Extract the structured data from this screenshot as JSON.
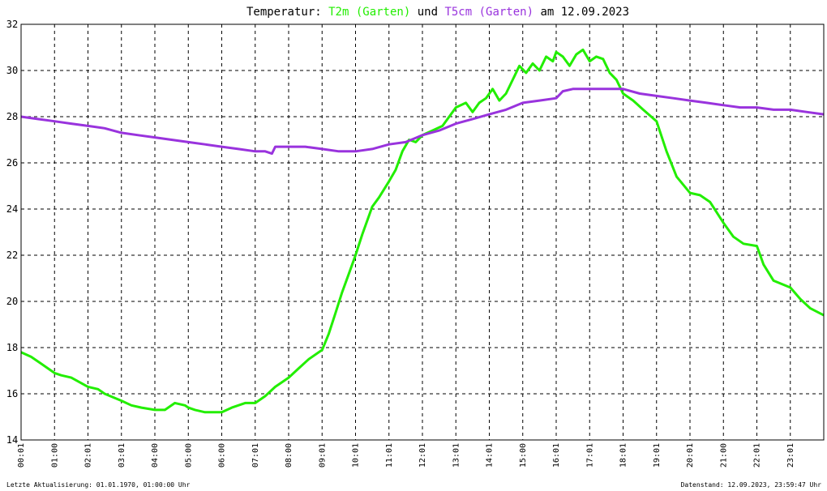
{
  "chart_data": {
    "type": "line",
    "title_parts": [
      {
        "text": "Temperatur: ",
        "role": "plain"
      },
      {
        "text": "T2m (Garten)",
        "role": "series-0"
      },
      {
        "text": " und ",
        "role": "plain"
      },
      {
        "text": "T5cm (Garten)",
        "role": "series-1"
      },
      {
        "text": " am 12.09.2023",
        "role": "plain"
      }
    ],
    "xlabel": "",
    "ylabel": "",
    "xlim": [
      0,
      24
    ],
    "ylim": [
      14,
      32
    ],
    "grid": true,
    "y_ticks": [
      14,
      16,
      18,
      20,
      22,
      24,
      26,
      28,
      30,
      32
    ],
    "x_ticks": [
      {
        "x": 0,
        "label": "00:01"
      },
      {
        "x": 1,
        "label": "01:00"
      },
      {
        "x": 2,
        "label": "02:01"
      },
      {
        "x": 3,
        "label": "03:01"
      },
      {
        "x": 4,
        "label": "04:00"
      },
      {
        "x": 5,
        "label": "05:00"
      },
      {
        "x": 6,
        "label": "06:00"
      },
      {
        "x": 7,
        "label": "07:01"
      },
      {
        "x": 8,
        "label": "08:00"
      },
      {
        "x": 9,
        "label": "09:01"
      },
      {
        "x": 10,
        "label": "10:01"
      },
      {
        "x": 11,
        "label": "11:01"
      },
      {
        "x": 12,
        "label": "12:01"
      },
      {
        "x": 13,
        "label": "13:01"
      },
      {
        "x": 14,
        "label": "14:01"
      },
      {
        "x": 15,
        "label": "15:00"
      },
      {
        "x": 16,
        "label": "16:01"
      },
      {
        "x": 17,
        "label": "17:01"
      },
      {
        "x": 18,
        "label": "18:01"
      },
      {
        "x": 19,
        "label": "19:01"
      },
      {
        "x": 20,
        "label": "20:01"
      },
      {
        "x": 21,
        "label": "21:00"
      },
      {
        "x": 22,
        "label": "22:01"
      },
      {
        "x": 23,
        "label": "23:01"
      }
    ],
    "series": [
      {
        "name": "T2m (Garten)",
        "color": "#22ee00",
        "x": [
          0,
          0.3,
          0.6,
          1.0,
          1.2,
          1.5,
          2.0,
          2.3,
          2.5,
          3.0,
          3.3,
          3.6,
          4.0,
          4.3,
          4.6,
          4.9,
          5.0,
          5.2,
          5.5,
          5.8,
          6.0,
          6.3,
          6.7,
          7.0,
          7.3,
          7.6,
          8.0,
          8.3,
          8.6,
          9.0,
          9.2,
          9.4,
          9.6,
          9.8,
          10.0,
          10.2,
          10.5,
          10.7,
          11.0,
          11.2,
          11.4,
          11.6,
          11.8,
          12.0,
          12.3,
          12.6,
          13.0,
          13.3,
          13.5,
          13.7,
          13.9,
          14.1,
          14.3,
          14.5,
          14.7,
          14.9,
          15.1,
          15.3,
          15.5,
          15.7,
          15.9,
          16.0,
          16.2,
          16.4,
          16.6,
          16.8,
          17.0,
          17.2,
          17.4,
          17.6,
          17.8,
          18.0,
          18.3,
          18.6,
          19.0,
          19.3,
          19.6,
          20.0,
          20.3,
          20.6,
          21.0,
          21.3,
          21.6,
          22.0,
          22.2,
          22.5,
          23.0,
          23.3,
          23.6,
          24.0
        ],
        "values": [
          17.8,
          17.6,
          17.3,
          16.9,
          16.8,
          16.7,
          16.3,
          16.2,
          16.0,
          15.7,
          15.5,
          15.4,
          15.3,
          15.3,
          15.6,
          15.5,
          15.4,
          15.3,
          15.2,
          15.2,
          15.2,
          15.4,
          15.6,
          15.6,
          15.9,
          16.3,
          16.7,
          17.1,
          17.5,
          17.9,
          18.6,
          19.5,
          20.4,
          21.2,
          22.0,
          22.9,
          24.1,
          24.5,
          25.2,
          25.7,
          26.5,
          27.0,
          26.9,
          27.2,
          27.4,
          27.6,
          28.4,
          28.6,
          28.2,
          28.6,
          28.8,
          29.2,
          28.7,
          29.0,
          29.6,
          30.2,
          29.9,
          30.3,
          30.0,
          30.6,
          30.4,
          30.8,
          30.6,
          30.2,
          30.7,
          30.9,
          30.4,
          30.6,
          30.5,
          29.9,
          29.6,
          29.0,
          28.7,
          28.3,
          27.8,
          26.5,
          25.4,
          24.7,
          24.6,
          24.3,
          23.4,
          22.8,
          22.5,
          22.4,
          21.6,
          20.9,
          20.6,
          20.1,
          19.7,
          19.4
        ]
      },
      {
        "name": "T5cm (Garten)",
        "color": "#9933dd",
        "x": [
          0,
          0.5,
          1.0,
          1.5,
          2.0,
          2.5,
          3.0,
          3.5,
          4.0,
          4.5,
          5.0,
          5.5,
          6.0,
          6.5,
          7.0,
          7.3,
          7.5,
          7.6,
          8.0,
          8.5,
          9.0,
          9.5,
          10.0,
          10.5,
          11.0,
          11.5,
          12.0,
          12.5,
          13.0,
          13.5,
          14.0,
          14.5,
          15.0,
          15.5,
          16.0,
          16.2,
          16.5,
          17.0,
          17.5,
          18.0,
          18.5,
          19.0,
          19.5,
          20.0,
          20.5,
          21.0,
          21.5,
          22.0,
          22.5,
          23.0,
          23.5,
          24.0
        ],
        "values": [
          28.0,
          27.9,
          27.8,
          27.7,
          27.6,
          27.5,
          27.3,
          27.2,
          27.1,
          27.0,
          26.9,
          26.8,
          26.7,
          26.6,
          26.5,
          26.5,
          26.4,
          26.7,
          26.7,
          26.7,
          26.6,
          26.5,
          26.5,
          26.6,
          26.8,
          26.9,
          27.2,
          27.4,
          27.7,
          27.9,
          28.1,
          28.3,
          28.6,
          28.7,
          28.8,
          29.1,
          29.2,
          29.2,
          29.2,
          29.2,
          29.0,
          28.9,
          28.8,
          28.7,
          28.6,
          28.5,
          28.4,
          28.4,
          28.3,
          28.3,
          28.2,
          28.1
        ]
      }
    ]
  },
  "footer": {
    "left": "Letzte Aktualisierung: 01.01.1970, 01:00:00 Uhr",
    "right": "Datenstand: 12.09.2023, 23:59:47 Uhr"
  }
}
